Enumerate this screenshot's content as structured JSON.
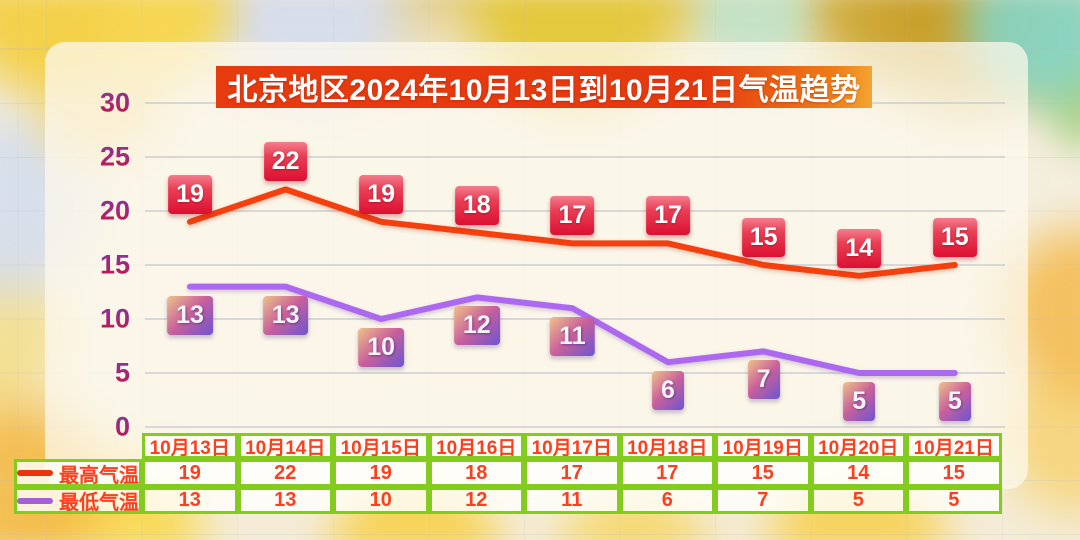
{
  "title": "北京地区2024年10月13日到10月21日气温趋势",
  "chart_data": {
    "type": "line",
    "title": "北京地区2024年10月13日到10月21日气温趋势",
    "categories": [
      "10月13日",
      "10月14日",
      "10月15日",
      "10月16日",
      "10月17日",
      "10月18日",
      "10月19日",
      "10月20日",
      "10月21日"
    ],
    "series": [
      {
        "name": "最高气温",
        "values": [
          19,
          22,
          19,
          18,
          17,
          17,
          15,
          14,
          15
        ],
        "color": "#F4400E",
        "swatch_color": "#E8350E"
      },
      {
        "name": "最低气温",
        "values": [
          13,
          13,
          10,
          12,
          11,
          6,
          7,
          5,
          5
        ],
        "color": "#AC68EE",
        "swatch_color": "#A55FD8"
      }
    ],
    "ylim": [
      0,
      30
    ],
    "ytick_step": 5,
    "yticks": [
      30,
      25,
      20,
      15,
      10,
      5,
      0
    ],
    "grid": true,
    "data_labels": true,
    "legend_position": "table-rows-bottom-left",
    "data_table_shown": true
  },
  "colors": {
    "title_bg": "#E63A0F",
    "title_text": "#FFFFFF",
    "table_border": "#84CB20",
    "table_text": "#FB401F",
    "axis_text_gradient": [
      "#80389C",
      "#C41652"
    ],
    "high_series": "#F4400E",
    "low_series": "#AC68EE",
    "high_label_box": [
      "#F37E8D",
      "#DC1031"
    ],
    "low_label_box": [
      "#EDC289",
      "#C9609B",
      "#6C55D2"
    ]
  }
}
